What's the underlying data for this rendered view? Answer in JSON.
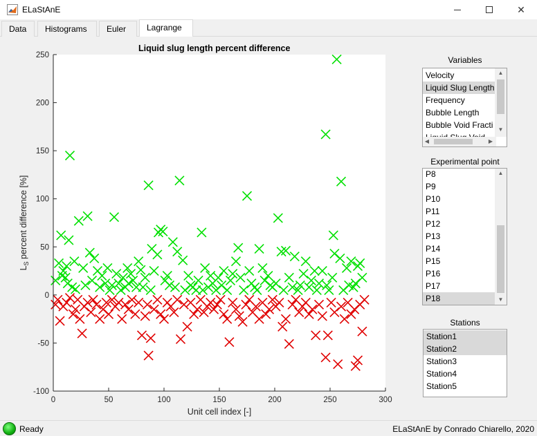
{
  "window": {
    "title": "ELaStAnE",
    "icon": "matlab-icon"
  },
  "tabs": [
    {
      "label": "Data",
      "active": false
    },
    {
      "label": "Histograms",
      "active": false
    },
    {
      "label": "Euler",
      "active": false
    },
    {
      "label": "Lagrange",
      "active": true
    }
  ],
  "plot_title": "Liquid slug length percent difference",
  "colors": {
    "positive_marker": "#00e000",
    "negative_marker": "#e00000",
    "status_light": "#10b010"
  },
  "chart_data": {
    "type": "scatter",
    "title": "Liquid slug length percent difference",
    "xlabel": "Unit cell index [-]",
    "ylabel": "L_S percent difference [%]",
    "xlim": [
      0,
      300
    ],
    "ylim": [
      -100,
      250
    ],
    "xticks": [
      "0",
      "50",
      "100",
      "150",
      "200",
      "250",
      "300"
    ],
    "yticks": [
      "-100",
      "-50",
      "0",
      "50",
      "100",
      "150",
      "200",
      "250"
    ],
    "marker": "x",
    "series": [
      {
        "color": "#00e000",
        "x": [
          2,
          5,
          7,
          8,
          9,
          11,
          12,
          13,
          14,
          15,
          17,
          19,
          20,
          23,
          27,
          29,
          31,
          33,
          35,
          37,
          40,
          42,
          44,
          47,
          49,
          51,
          53,
          55,
          57,
          59,
          61,
          63,
          65,
          67,
          68,
          70,
          72,
          75,
          77,
          79,
          81,
          83,
          86,
          88,
          89,
          91,
          94,
          95,
          97,
          99,
          101,
          103,
          105,
          108,
          110,
          112,
          114,
          117,
          119,
          122,
          124,
          126,
          129,
          131,
          134,
          135,
          137,
          140,
          142,
          144,
          147,
          149,
          152,
          154,
          157,
          160,
          162,
          165,
          167,
          169,
          172,
          175,
          177,
          179,
          182,
          184,
          186,
          189,
          191,
          194,
          196,
          198,
          201,
          203,
          206,
          208,
          210,
          213,
          216,
          218,
          221,
          223,
          226,
          228,
          231,
          233,
          236,
          238,
          240,
          243,
          246,
          247,
          249,
          252,
          253,
          254,
          256,
          259,
          260,
          262,
          265,
          267,
          269,
          271,
          273,
          275,
          277,
          279
        ],
        "y": [
          15,
          33,
          62,
          20,
          25,
          18,
          30,
          12,
          57,
          145,
          8,
          35,
          6,
          77,
          28,
          10,
          82,
          44,
          15,
          38,
          25,
          8,
          20,
          12,
          28,
          5,
          10,
          81,
          22,
          12,
          5,
          18,
          8,
          28,
          12,
          22,
          15,
          8,
          35,
          26,
          8,
          18,
          114,
          5,
          48,
          25,
          42,
          65,
          68,
          66,
          15,
          20,
          10,
          55,
          8,
          45,
          119,
          36,
          5,
          20,
          10,
          8,
          5,
          15,
          65,
          5,
          28,
          8,
          20,
          12,
          5,
          18,
          10,
          25,
          5,
          15,
          22,
          35,
          49,
          18,
          5,
          103,
          25,
          12,
          8,
          5,
          48,
          28,
          15,
          20,
          10,
          8,
          12,
          80,
          45,
          5,
          46,
          18,
          8,
          40,
          5,
          10,
          22,
          35,
          8,
          15,
          25,
          5,
          12,
          25,
          167,
          10,
          5,
          18,
          62,
          43,
          245,
          38,
          118,
          5,
          28,
          10,
          35,
          8,
          12,
          30,
          33,
          18
        ]
      },
      {
        "color": "#e00000",
        "x": [
          2,
          4,
          6,
          9,
          12,
          15,
          18,
          20,
          22,
          24,
          26,
          28,
          31,
          34,
          36,
          39,
          42,
          45,
          48,
          50,
          53,
          56,
          59,
          62,
          65,
          68,
          71,
          74,
          77,
          80,
          83,
          85,
          86,
          88,
          91,
          94,
          97,
          100,
          103,
          106,
          109,
          112,
          115,
          118,
          121,
          124,
          127,
          130,
          133,
          136,
          139,
          142,
          145,
          148,
          151,
          154,
          157,
          159,
          162,
          165,
          168,
          171,
          174,
          177,
          180,
          183,
          186,
          189,
          192,
          195,
          198,
          201,
          204,
          207,
          210,
          213,
          216,
          219,
          222,
          225,
          228,
          231,
          234,
          237,
          240,
          243,
          246,
          248,
          251,
          254,
          257,
          260,
          263,
          266,
          269,
          272,
          273,
          275,
          277,
          279,
          281
        ],
        "y": [
          -10,
          -5,
          -27,
          -12,
          -8,
          -3,
          -20,
          -15,
          -5,
          -25,
          -40,
          -12,
          -8,
          -18,
          -5,
          -10,
          -25,
          -15,
          -8,
          -20,
          -5,
          -12,
          -8,
          -25,
          -10,
          -15,
          -5,
          -20,
          -8,
          -42,
          -22,
          -10,
          -63,
          -45,
          -15,
          -5,
          -20,
          -25,
          -8,
          -12,
          -18,
          -5,
          -46,
          -10,
          -33,
          -8,
          -20,
          -15,
          -5,
          -18,
          -12,
          -8,
          -15,
          -10,
          -5,
          -20,
          -25,
          -49,
          -8,
          -15,
          -22,
          -28,
          -10,
          -5,
          -18,
          -12,
          -25,
          -8,
          -20,
          -15,
          -5,
          -12,
          -8,
          -33,
          -25,
          -51,
          -10,
          -5,
          -18,
          -12,
          -8,
          -20,
          -15,
          -42,
          -10,
          -22,
          -65,
          -42,
          -8,
          -18,
          -72,
          -12,
          -25,
          -8,
          -20,
          -15,
          -74,
          -68,
          -10,
          -38,
          -5
        ]
      }
    ]
  },
  "variables_panel": {
    "label": "Variables",
    "items": [
      "Velocity",
      "Liquid Slug Length",
      "Frequency",
      "Bubble Length",
      "Bubble Void Fracti",
      "Liquid Slug Void"
    ],
    "selected_index": 1
  },
  "exp_point_panel": {
    "label": "Experimental point",
    "items": [
      "P8",
      "P9",
      "P10",
      "P11",
      "P12",
      "P13",
      "P14",
      "P15",
      "P16",
      "P17",
      "P18"
    ],
    "selected_index": 10
  },
  "stations_panel": {
    "label": "Stations",
    "items": [
      "Station1",
      "Station2",
      "Station3",
      "Station4",
      "Station5"
    ],
    "selected_indices": [
      0,
      1
    ]
  },
  "status": {
    "text": "Ready",
    "credit": "ELaStAnE by Conrado Chiarello, 2020"
  }
}
